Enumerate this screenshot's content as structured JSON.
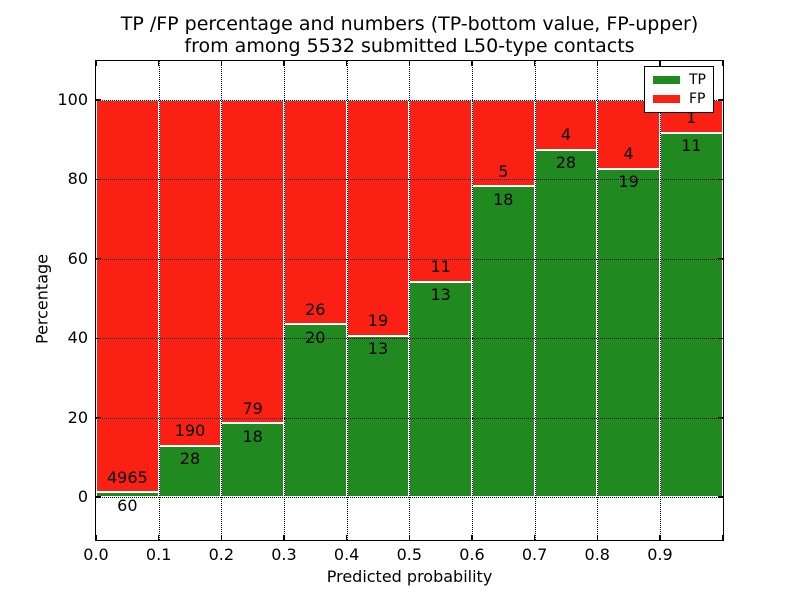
{
  "title": {
    "line1": "TP /FP percentage and numbers (TP-bottom value, FP-upper)",
    "line2": "from among 5532 submitted L50-type contacts"
  },
  "axes": {
    "ylabel": "Percentage",
    "xlabel": "Predicted probability",
    "ytick_values": [
      0,
      20,
      40,
      60,
      80,
      100
    ],
    "ytick_labels": [
      "0",
      "20",
      "40",
      "60",
      "80",
      "100"
    ],
    "xtick_labels": [
      "0.0",
      "0.1",
      "0.2",
      "0.3",
      "0.4",
      "0.5",
      "0.6",
      "0.7",
      "0.8",
      "0.9"
    ]
  },
  "legend": {
    "items": [
      {
        "label": "TP",
        "color": "#208a20"
      },
      {
        "label": "FP",
        "color": "#fa2013"
      }
    ]
  },
  "colors": {
    "tp_green": "#208a20",
    "fp_red": "#fa2013",
    "bar_edge": "#ffffff",
    "grid": "#000000"
  },
  "chart_data": {
    "type": "bar",
    "stacked": true,
    "normalized_to_percent": 100,
    "title": "TP /FP percentage and numbers (TP-bottom value, FP-upper) from among 5532 submitted L50-type contacts",
    "xlabel": "Predicted probability",
    "ylabel": "Percentage",
    "total_contacts": 5532,
    "bins": [
      "0.0-0.1",
      "0.1-0.2",
      "0.2-0.3",
      "0.3-0.4",
      "0.4-0.5",
      "0.5-0.6",
      "0.6-0.7",
      "0.7-0.8",
      "0.8-0.9",
      "0.9-1.0"
    ],
    "series": [
      {
        "name": "TP",
        "counts": [
          60,
          28,
          18,
          20,
          13,
          13,
          18,
          28,
          19,
          11
        ]
      },
      {
        "name": "FP",
        "counts": [
          4965,
          190,
          79,
          26,
          19,
          11,
          5,
          4,
          4,
          1
        ]
      }
    ],
    "tp_percent": [
      1.19,
      12.84,
      18.56,
      43.48,
      40.63,
      54.17,
      78.26,
      87.5,
      82.61,
      91.67
    ],
    "fp_percent": [
      98.81,
      87.16,
      81.44,
      56.52,
      59.37,
      45.83,
      21.74,
      12.5,
      17.39,
      8.33
    ],
    "xlim": [
      0.0,
      1.0
    ],
    "ylim": [
      -11,
      110
    ],
    "grid": true,
    "legend_position": "upper right"
  }
}
